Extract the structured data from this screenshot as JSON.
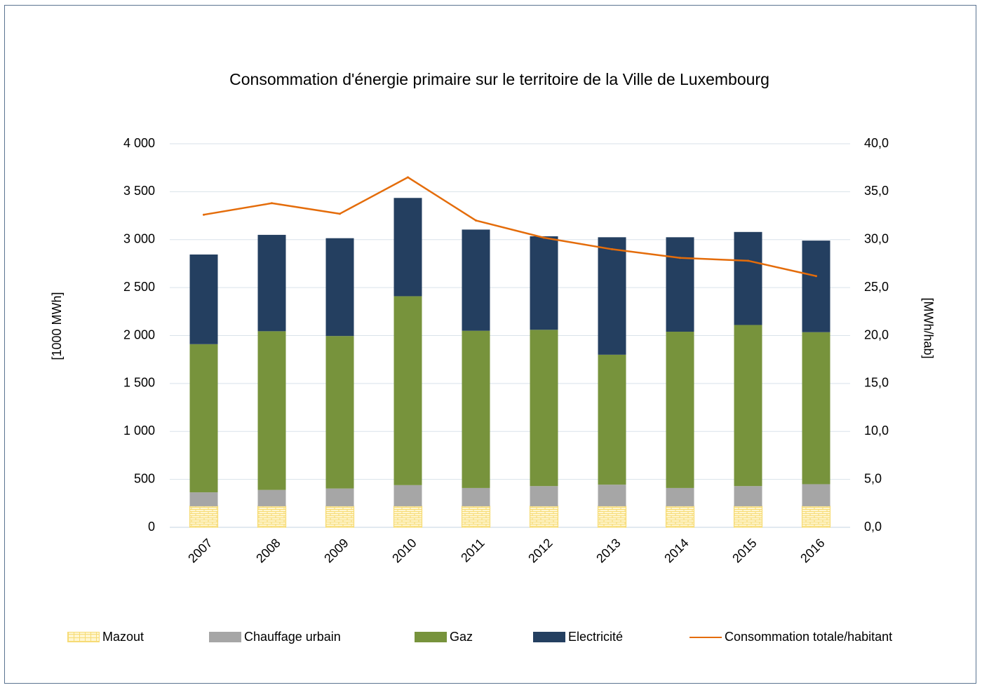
{
  "chart_data": {
    "type": "bar",
    "stacked": true,
    "title": "Consommation d'énergie primaire sur le territoire de la Ville de Luxembourg",
    "ylabel_left": "[1000 MWh]",
    "ylabel_right": "[MWh/hab]",
    "ylim_left": [
      0,
      4000
    ],
    "ylim_right": [
      0,
      40
    ],
    "yticks_left": [
      "0",
      "500",
      "1 000",
      "1 500",
      "2 000",
      "2 500",
      "3 000",
      "3 500",
      "4 000"
    ],
    "yticks_right": [
      "0,0",
      "5,0",
      "10,0",
      "15,0",
      "20,0",
      "25,0",
      "30,0",
      "35,0",
      "40,0"
    ],
    "grid": true,
    "legend_position": "bottom",
    "categories": [
      "2007",
      "2008",
      "2009",
      "2010",
      "2011",
      "2012",
      "2013",
      "2014",
      "2015",
      "2016"
    ],
    "series": [
      {
        "name": "Mazout",
        "color": "#fff6d0",
        "values": [
          220,
          220,
          220,
          220,
          220,
          220,
          220,
          220,
          220,
          220
        ]
      },
      {
        "name": "Chauffage urbain",
        "color": "#a6a6a6",
        "values": [
          145,
          170,
          185,
          220,
          190,
          210,
          225,
          190,
          210,
          230
        ]
      },
      {
        "name": "Gaz",
        "color": "#77933c",
        "values": [
          1545,
          1655,
          1590,
          1970,
          1640,
          1630,
          1355,
          1630,
          1680,
          1585
        ]
      },
      {
        "name": "Electricité",
        "color": "#243f60",
        "values": [
          935,
          1005,
          1020,
          1025,
          1055,
          975,
          1225,
          985,
          970,
          955
        ]
      }
    ],
    "line_series": {
      "name": "Consommation totale/habitant",
      "color": "#e46c0a",
      "axis": "right",
      "values": [
        32.6,
        33.8,
        32.7,
        36.5,
        32.0,
        30.2,
        29.0,
        28.1,
        27.8,
        26.2
      ]
    }
  }
}
